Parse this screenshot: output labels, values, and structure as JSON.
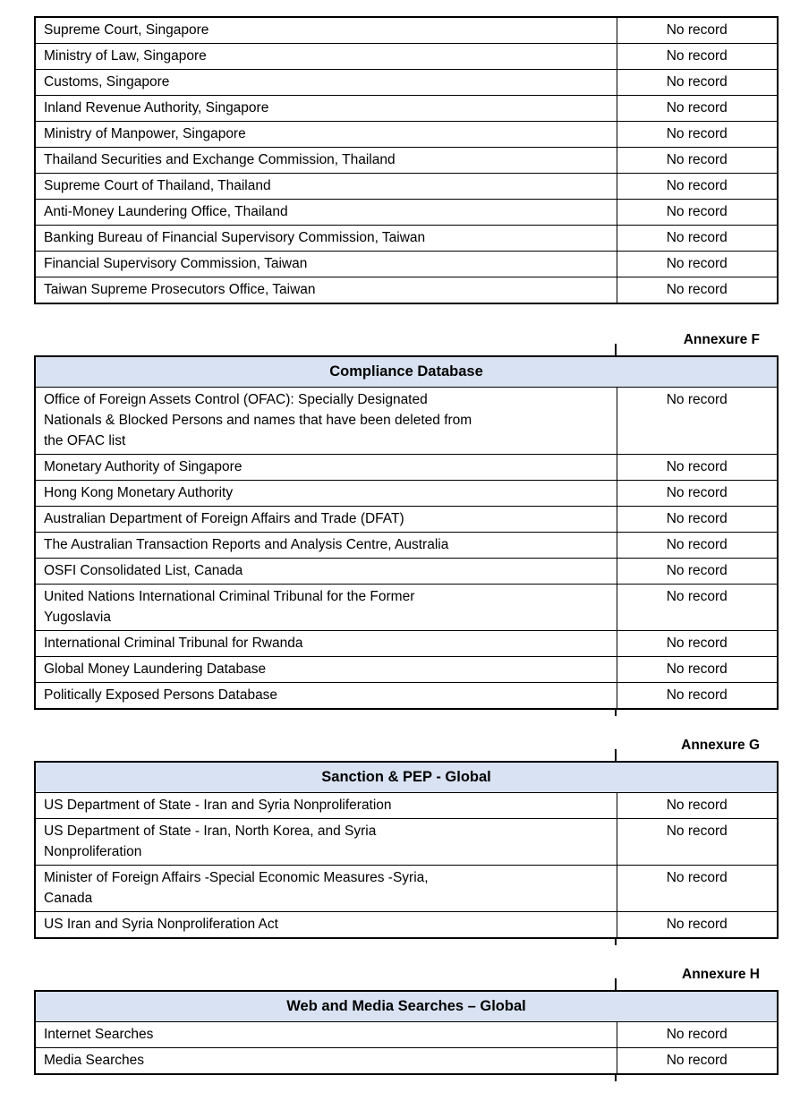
{
  "document": {
    "colors": {
      "table_header_bg": "#d9e2f2",
      "border": "#000000",
      "text": "#000000"
    },
    "sections": [
      {
        "annexure": null,
        "table": {
          "header": null,
          "rows": [
            {
              "source": "Supreme Court, Singapore",
              "result": "No record"
            },
            {
              "source": "Ministry of Law, Singapore",
              "result": "No record"
            },
            {
              "source": "Customs, Singapore",
              "result": "No record"
            },
            {
              "source": "Inland Revenue Authority, Singapore",
              "result": "No record"
            },
            {
              "source": "Ministry of Manpower, Singapore",
              "result": "No record"
            },
            {
              "source": "Thailand Securities and Exchange Commission, Thailand",
              "result": "No record"
            },
            {
              "source": "Supreme Court of Thailand, Thailand",
              "result": "No record"
            },
            {
              "source": "Anti-Money Laundering Office, Thailand",
              "result": "No record"
            },
            {
              "source": "Banking Bureau of Financial Supervisory Commission, Taiwan",
              "result": "No record"
            },
            {
              "source": "Financial Supervisory Commission, Taiwan",
              "result": "No record"
            },
            {
              "source": "Taiwan Supreme Prosecutors Office, Taiwan",
              "result": "No record"
            }
          ]
        }
      },
      {
        "annexure": "Annexure F",
        "table": {
          "header": "Compliance Database",
          "rows": [
            {
              "source": [
                "Office of Foreign Assets Control (OFAC): Specially Designated",
                "Nationals & Blocked Persons and names that have been deleted from",
                "the OFAC list"
              ],
              "result": "No record"
            },
            {
              "source": "Monetary Authority of Singapore",
              "result": "No record"
            },
            {
              "source": "Hong Kong Monetary Authority",
              "result": "No record"
            },
            {
              "source": "Australian Department of Foreign Affairs and Trade (DFAT)",
              "result": "No record"
            },
            {
              "source": "The Australian Transaction Reports and Analysis Centre, Australia",
              "result": "No record"
            },
            {
              "source": "OSFI Consolidated List, Canada",
              "result": "No record"
            },
            {
              "source": [
                "United Nations International Criminal Tribunal for the Former",
                "Yugoslavia"
              ],
              "result": "No record"
            },
            {
              "source": "International Criminal Tribunal for Rwanda",
              "result": "No record"
            },
            {
              "source": "Global Money Laundering Database",
              "result": "No record"
            },
            {
              "source": "Politically Exposed Persons Database",
              "result": "No record"
            }
          ]
        }
      },
      {
        "annexure": "Annexure G",
        "table": {
          "header": "Sanction & PEP - Global",
          "rows": [
            {
              "source": "US Department of State - Iran and Syria Nonproliferation",
              "result": "No record"
            },
            {
              "source": [
                "US Department of State - Iran, North Korea, and Syria",
                "Nonproliferation"
              ],
              "result": "No record"
            },
            {
              "source": [
                "Minister of Foreign Affairs -Special Economic Measures -Syria,",
                "Canada"
              ],
              "result": "No record"
            },
            {
              "source": "US Iran and Syria Nonproliferation Act",
              "result": "No record"
            }
          ]
        }
      },
      {
        "annexure": "Annexure H",
        "table": {
          "header": "Web and Media Searches – Global",
          "rows": [
            {
              "source": "Internet Searches",
              "result": "No record"
            },
            {
              "source": "Media Searches",
              "result": "No record"
            }
          ]
        }
      }
    ]
  }
}
